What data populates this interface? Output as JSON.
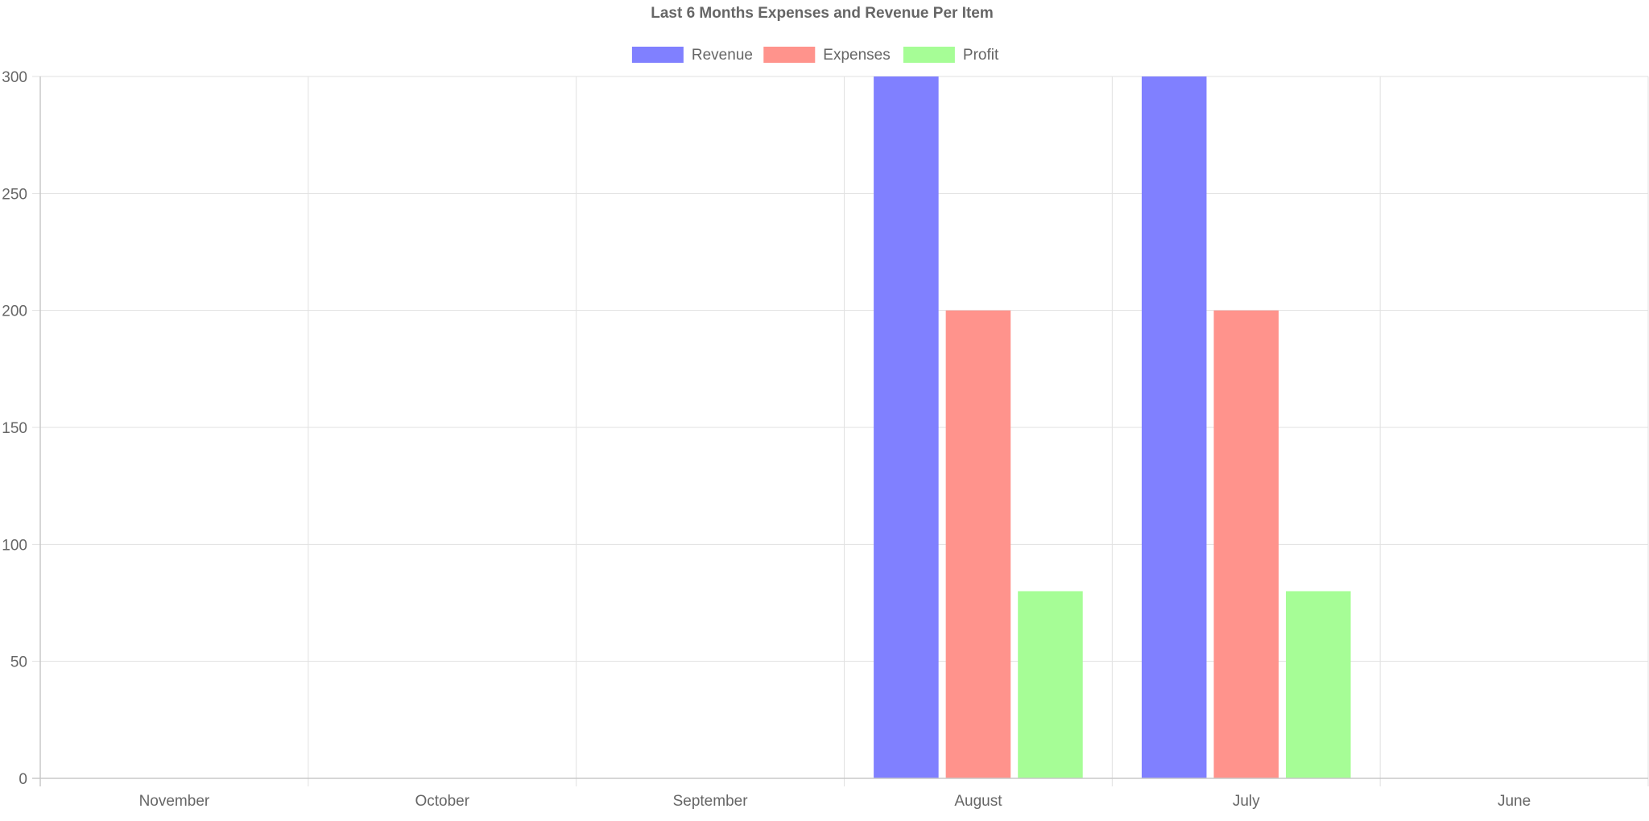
{
  "chart_data": {
    "type": "bar",
    "title": "Last 6 Months Expenses and Revenue Per Item",
    "categories": [
      "November",
      "October",
      "September",
      "August",
      "July",
      "June"
    ],
    "series": [
      {
        "name": "Revenue",
        "color": "#8080ff",
        "values": [
          0,
          0,
          0,
          300,
          300,
          0
        ]
      },
      {
        "name": "Expenses",
        "color": "#ff938c",
        "values": [
          0,
          0,
          0,
          200,
          200,
          0
        ]
      },
      {
        "name": "Profit",
        "color": "#a6fd96",
        "values": [
          0,
          0,
          0,
          80,
          80,
          0
        ]
      }
    ],
    "xlabel": "",
    "ylabel": "",
    "ylim": [
      0,
      300
    ],
    "yticks": [
      0,
      50,
      100,
      150,
      200,
      250,
      300
    ],
    "grid": true,
    "legend_position": "top"
  }
}
